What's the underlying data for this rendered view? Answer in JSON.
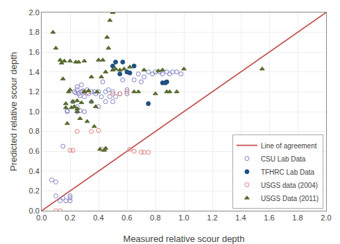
{
  "chart_data": {
    "type": "scatter",
    "xlabel": "Measured relative scour depth",
    "ylabel": "Predicted relative scour depth",
    "xlim": [
      0.0,
      2.0
    ],
    "ylim": [
      0.0,
      2.0
    ],
    "xticks": [
      {
        "value": 0.0,
        "label": "0.0"
      },
      0.2,
      0.4,
      0.6,
      0.8,
      {
        "value": 1.0,
        "label": "1.0"
      },
      1.2,
      1.4,
      1.6,
      1.8,
      {
        "value": 2.0,
        "label": "2.0"
      }
    ],
    "yticks": [
      {
        "value": 0.0,
        "label": "0.0"
      },
      0.2,
      0.4,
      0.6,
      0.8,
      {
        "value": 1.0,
        "label": "1.0"
      },
      1.2,
      1.4,
      1.6,
      1.8,
      {
        "value": 2.0,
        "label": "2.0"
      }
    ],
    "grid": true,
    "legend": "lower right",
    "series": [
      {
        "name": "Line of agreement",
        "type": "line",
        "color": "#c0504d",
        "line_style": "solid",
        "x": [
          0,
          2
        ],
        "values": [
          0,
          2
        ]
      },
      {
        "name": "CSU Lab Data",
        "type": "scatter",
        "color": "#8080c0",
        "marker": "circle-open",
        "x": [
          0.07,
          0.1,
          0.1,
          0.13,
          0.15,
          0.15,
          0.17,
          0.18,
          0.18,
          0.2,
          0.2,
          0.2,
          0.22,
          0.23,
          0.24,
          0.25,
          0.25,
          0.25,
          0.25,
          0.26,
          0.27,
          0.27,
          0.28,
          0.28,
          0.29,
          0.3,
          0.3,
          0.3,
          0.32,
          0.33,
          0.35,
          0.35,
          0.37,
          0.38,
          0.4,
          0.4,
          0.42,
          0.43,
          0.45,
          0.45,
          0.47,
          0.48,
          0.5,
          0.5,
          0.52,
          0.55,
          0.57,
          0.6,
          0.6,
          0.65,
          0.68,
          0.7,
          0.72,
          0.75,
          0.78,
          0.8,
          0.83,
          0.85,
          0.88,
          0.9,
          0.92,
          0.95,
          0.98
        ],
        "values": [
          0.31,
          0.29,
          0.15,
          0.1,
          0.65,
          0.13,
          0.1,
          1.0,
          1.01,
          0.15,
          0.13,
          0.1,
          1.1,
          1.2,
          1.19,
          1.0,
          1.05,
          1.22,
          1.25,
          1.18,
          1.01,
          1.16,
          1.2,
          1.27,
          1.21,
          1.0,
          1.15,
          1.2,
          1.22,
          1.18,
          1.1,
          1.2,
          1.2,
          1.18,
          1.05,
          1.2,
          1.15,
          1.3,
          1.1,
          1.2,
          1.22,
          1.15,
          1.1,
          1.2,
          1.15,
          1.18,
          1.32,
          1.18,
          1.22,
          1.32,
          1.38,
          1.3,
          1.35,
          1.4,
          1.38,
          1.4,
          1.4,
          1.38,
          1.4,
          1.38,
          1.4,
          1.4,
          1.38
        ]
      },
      {
        "name": "TFHRC Lab Data",
        "type": "scatter",
        "color": "#1f5080",
        "marker": "circle",
        "x": [
          0.5,
          0.52,
          0.55,
          0.57,
          0.6,
          0.62,
          0.65,
          0.75,
          0.85,
          0.87,
          0.88
        ],
        "values": [
          1.46,
          1.5,
          1.38,
          1.5,
          1.4,
          1.39,
          1.46,
          1.08,
          1.29,
          1.29,
          1.3
        ]
      },
      {
        "name": "USGS data (2004)",
        "type": "scatter",
        "color": "#e08080",
        "marker": "circle-open",
        "x": [
          0.1,
          0.13,
          0.2,
          0.22,
          0.25,
          0.3,
          0.32,
          0.35,
          0.4,
          0.42,
          0.5,
          0.55,
          0.6,
          0.62,
          0.65,
          0.7,
          0.72,
          0.75
        ],
        "values": [
          0.0,
          0.0,
          0.61,
          0.61,
          0.8,
          1.2,
          1.19,
          0.8,
          0.81,
          0.62,
          1.18,
          1.18,
          1.2,
          0.62,
          0.6,
          0.59,
          0.59,
          0.59
        ]
      },
      {
        "name": "USGS Data (2011)",
        "type": "scatter",
        "color": "#556b2f",
        "marker": "triangle-up",
        "x": [
          0.08,
          0.1,
          0.13,
          0.14,
          0.15,
          0.16,
          0.17,
          0.17,
          0.18,
          0.19,
          0.2,
          0.2,
          0.21,
          0.22,
          0.23,
          0.24,
          0.25,
          0.25,
          0.25,
          0.26,
          0.27,
          0.28,
          0.3,
          0.3,
          0.32,
          0.33,
          0.35,
          0.35,
          0.37,
          0.38,
          0.39,
          0.4,
          0.41,
          0.42,
          0.43,
          0.44,
          0.45,
          0.45,
          0.46,
          0.47,
          0.48,
          0.5,
          0.5,
          0.52,
          0.55,
          0.58,
          0.62,
          0.65,
          0.68,
          0.72,
          0.8,
          0.82,
          0.85,
          0.88,
          0.9,
          0.95,
          1.0,
          1.55
        ],
        "values": [
          1.8,
          1.64,
          1.52,
          1.49,
          1.33,
          1.51,
          1.04,
          1.08,
          0.88,
          1.2,
          1.22,
          1.51,
          1.04,
          1.1,
          1.05,
          1.5,
          1.0,
          1.03,
          1.11,
          1.5,
          0.93,
          1.09,
          1.2,
          1.51,
          0.9,
          1.21,
          1.1,
          1.35,
          0.85,
          1.05,
          1.2,
          1.52,
          0.62,
          1.35,
          1.52,
          0.61,
          0.63,
          1.4,
          1.75,
          1.64,
          1.92,
          1.42,
          2.0,
          1.43,
          1.42,
          1.43,
          1.45,
          1.2,
          1.2,
          1.42,
          1.18,
          1.41,
          1.42,
          1.2,
          1.2,
          1.2,
          1.43,
          1.43
        ]
      }
    ]
  }
}
